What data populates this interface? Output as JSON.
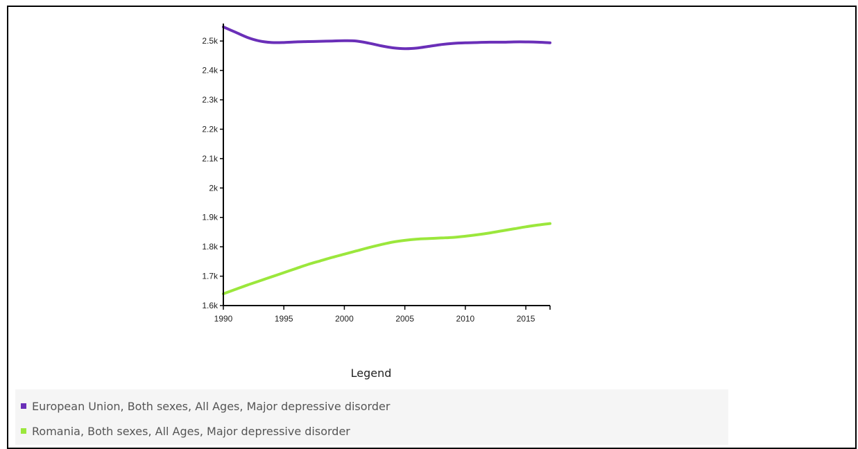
{
  "chart_data": {
    "type": "line",
    "title": "",
    "xlabel": "",
    "ylabel": "",
    "xlim": [
      1990,
      2017
    ],
    "ylim": [
      1600,
      2550
    ],
    "x_ticks": [
      1990,
      1995,
      2000,
      2005,
      2010,
      2015
    ],
    "x_tick_labels": [
      "1990",
      "1995",
      "2000",
      "2005",
      "2010",
      "2015"
    ],
    "y_ticks": [
      1600,
      1700,
      1800,
      1900,
      2000,
      2100,
      2200,
      2300,
      2400,
      2500
    ],
    "y_tick_labels": [
      "1.6k",
      "1.7k",
      "1.8k",
      "1.9k",
      "2k",
      "2.1k",
      "2.2k",
      "2.3k",
      "2.4k",
      "2.5k"
    ],
    "grid": false,
    "series": [
      {
        "name": "European Union, Both sexes, All Ages, Major depressive disorder",
        "color": "#6a2fb8",
        "x": [
          1990,
          1991,
          1992,
          1993,
          1994,
          1995,
          1996,
          1997,
          1998,
          1999,
          2000,
          2001,
          2002,
          2003,
          2004,
          2005,
          2006,
          2007,
          2008,
          2009,
          2010,
          2011,
          2012,
          2013,
          2014,
          2015,
          2016,
          2017
        ],
        "y": [
          2548,
          2530,
          2512,
          2500,
          2495,
          2495,
          2497,
          2498,
          2499,
          2500,
          2501,
          2500,
          2493,
          2484,
          2477,
          2474,
          2476,
          2482,
          2488,
          2492,
          2494,
          2495,
          2496,
          2496,
          2497,
          2497,
          2496,
          2494
        ]
      },
      {
        "name": "Romania, Both sexes, All Ages, Major depressive disorder",
        "color": "#9be73c",
        "x": [
          1990,
          1991,
          1992,
          1993,
          1994,
          1995,
          1996,
          1997,
          1998,
          1999,
          2000,
          2001,
          2002,
          2003,
          2004,
          2005,
          2006,
          2007,
          2008,
          2009,
          2010,
          2011,
          2012,
          2013,
          2014,
          2015,
          2016,
          2017
        ],
        "y": [
          1640,
          1655,
          1670,
          1684,
          1698,
          1712,
          1726,
          1740,
          1752,
          1764,
          1775,
          1786,
          1797,
          1807,
          1816,
          1822,
          1826,
          1828,
          1830,
          1832,
          1836,
          1841,
          1847,
          1854,
          1861,
          1868,
          1874,
          1879
        ]
      }
    ],
    "legend": {
      "title": "Legend",
      "position": "bottom"
    }
  }
}
